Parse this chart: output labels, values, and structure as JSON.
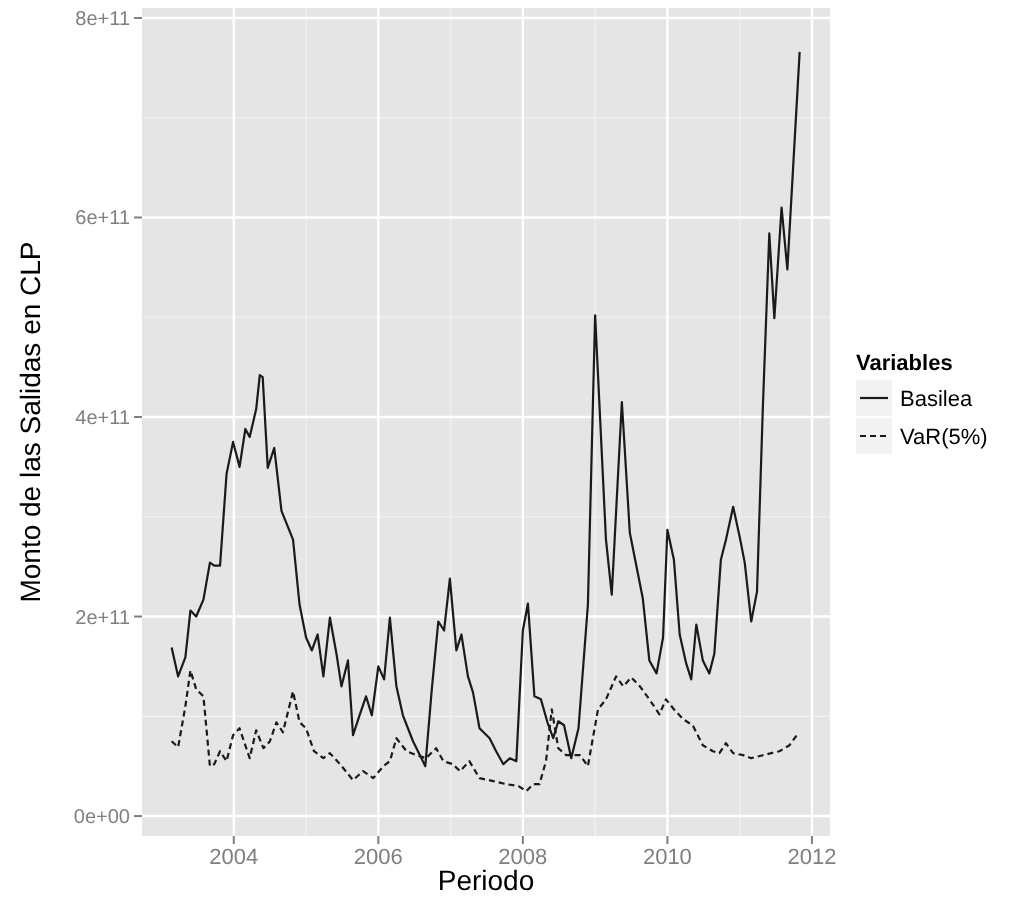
{
  "chart_data": {
    "type": "line",
    "xlabel": "Periodo",
    "ylabel": "Monto de las Salidas en CLP",
    "legend_title": "Variables",
    "legend": "right",
    "grid": true,
    "xlim": [
      2002.73,
      2012.25
    ],
    "ylim": [
      -20000000000,
      810000000000
    ],
    "xticks": [
      2004,
      2006,
      2008,
      2010,
      2012
    ],
    "yticks": [
      {
        "value": 0,
        "label": "0e+00"
      },
      {
        "value": 200000000000,
        "label": "2e+11"
      },
      {
        "value": 400000000000,
        "label": "4e+11"
      },
      {
        "value": 600000000000,
        "label": "6e+11"
      },
      {
        "value": 800000000000,
        "label": "8e+11"
      }
    ],
    "series": [
      {
        "name": "Basilea",
        "color": "#1a1a1a",
        "line_style": "solid",
        "x": [
          2003.14,
          2003.23,
          2003.33,
          2003.4,
          2003.48,
          2003.58,
          2003.67,
          2003.73,
          2003.81,
          2003.9,
          2003.99,
          2004.08,
          2004.16,
          2004.22,
          2004.31,
          2004.36,
          2004.4,
          2004.47,
          2004.56,
          2004.66,
          2004.82,
          2004.91,
          2005,
          2005.08,
          2005.16,
          2005.24,
          2005.33,
          2005.42,
          2005.49,
          2005.58,
          2005.65,
          2005.74,
          2005.83,
          2005.91,
          2006,
          2006.08,
          2006.16,
          2006.25,
          2006.34,
          2006.48,
          2006.65,
          2006.74,
          2006.83,
          2006.91,
          2006.99,
          2007.08,
          2007.15,
          2007.24,
          2007.31,
          2007.4,
          2007.54,
          2007.63,
          2007.73,
          2007.82,
          2007.91,
          2008,
          2008.07,
          2008.16,
          2008.25,
          2008.34,
          2008.42,
          2008.49,
          2008.57,
          2008.67,
          2008.77,
          2008.9,
          2009,
          2009.15,
          2009.23,
          2009.37,
          2009.48,
          2009.66,
          2009.75,
          2009.85,
          2009.94,
          2010,
          2010.09,
          2010.17,
          2010.26,
          2010.33,
          2010.4,
          2010.49,
          2010.58,
          2010.65,
          2010.74,
          2010.81,
          2010.91,
          2011,
          2011.07,
          2011.16,
          2011.24,
          2011.32,
          2011.41,
          2011.48,
          2011.58,
          2011.66,
          2011.83
        ],
        "values": [
          169000000000,
          140000000000,
          159000000000,
          206000000000,
          200000000000,
          217000000000,
          254000000000,
          251000000000,
          251000000000,
          343000000000,
          375000000000,
          350000000000,
          388000000000,
          380000000000,
          408000000000,
          442000000000,
          440000000000,
          349000000000,
          369000000000,
          306000000000,
          277000000000,
          212000000000,
          179000000000,
          166000000000,
          182000000000,
          140000000000,
          199000000000,
          163000000000,
          130000000000,
          156000000000,
          81000000000,
          101000000000,
          120000000000,
          101000000000,
          150000000000,
          137000000000,
          199000000000,
          130000000000,
          101000000000,
          75000000000,
          50000000000,
          127000000000,
          195000000000,
          186000000000,
          238000000000,
          166000000000,
          182000000000,
          140000000000,
          124000000000,
          88000000000,
          78000000000,
          65000000000,
          52000000000,
          58000000000,
          55000000000,
          186000000000,
          213000000000,
          120000000000,
          117000000000,
          94000000000,
          78000000000,
          95000000000,
          91000000000,
          58000000000,
          88000000000,
          212000000000,
          502000000000,
          277000000000,
          222000000000,
          415000000000,
          284000000000,
          218000000000,
          156000000000,
          143000000000,
          179000000000,
          287000000000,
          257000000000,
          182000000000,
          153000000000,
          137000000000,
          192000000000,
          156000000000,
          143000000000,
          163000000000,
          257000000000,
          277000000000,
          310000000000,
          280000000000,
          254000000000,
          195000000000,
          225000000000,
          408000000000,
          584000000000,
          499000000000,
          610000000000,
          548000000000,
          766000000000
        ]
      },
      {
        "name": "VaR(5%)",
        "color": "#1a1a1a",
        "line_style": "dashed",
        "x": [
          2003.14,
          2003.23,
          2003.33,
          2003.4,
          2003.48,
          2003.58,
          2003.67,
          2003.73,
          2003.81,
          2003.9,
          2003.99,
          2004.08,
          2004.22,
          2004.31,
          2004.41,
          2004.5,
          2004.59,
          2004.68,
          2004.82,
          2004.91,
          2005,
          2005.11,
          2005.24,
          2005.33,
          2005.47,
          2005.65,
          2005.79,
          2005.93,
          2006.07,
          2006.16,
          2006.25,
          2006.39,
          2006.53,
          2006.66,
          2006.8,
          2006.9,
          2007.03,
          2007.13,
          2007.26,
          2007.4,
          2007.59,
          2007.77,
          2007.94,
          2008.05,
          2008.14,
          2008.23,
          2008.32,
          2008.4,
          2008.49,
          2008.6,
          2008.79,
          2008.9,
          2009.04,
          2009.15,
          2009.29,
          2009.39,
          2009.5,
          2009.62,
          2009.75,
          2009.89,
          2009.98,
          2010.09,
          2010.22,
          2010.35,
          2010.49,
          2010.63,
          2010.72,
          2010.81,
          2010.91,
          2011.05,
          2011.16,
          2011.32,
          2011.55,
          2011.69,
          2011.81
        ],
        "values": [
          75000000000,
          69000000000,
          110000000000,
          146000000000,
          127000000000,
          120000000000,
          50000000000,
          52000000000,
          65000000000,
          55000000000,
          81000000000,
          88000000000,
          58000000000,
          86000000000,
          68000000000,
          75000000000,
          94000000000,
          84000000000,
          125000000000,
          94000000000,
          88000000000,
          65000000000,
          58000000000,
          63000000000,
          52000000000,
          36000000000,
          45000000000,
          38000000000,
          50000000000,
          55000000000,
          78000000000,
          65000000000,
          61000000000,
          58000000000,
          68000000000,
          55000000000,
          52000000000,
          45000000000,
          55000000000,
          38000000000,
          35000000000,
          32000000000,
          30000000000,
          25000000000,
          32000000000,
          32000000000,
          55000000000,
          107000000000,
          68000000000,
          61000000000,
          61000000000,
          50000000000,
          107000000000,
          117000000000,
          140000000000,
          130000000000,
          139000000000,
          130000000000,
          117000000000,
          102000000000,
          117000000000,
          107000000000,
          97000000000,
          91000000000,
          71000000000,
          65000000000,
          63000000000,
          73000000000,
          63000000000,
          61000000000,
          58000000000,
          61000000000,
          65000000000,
          71000000000,
          83000000000
        ]
      }
    ]
  }
}
